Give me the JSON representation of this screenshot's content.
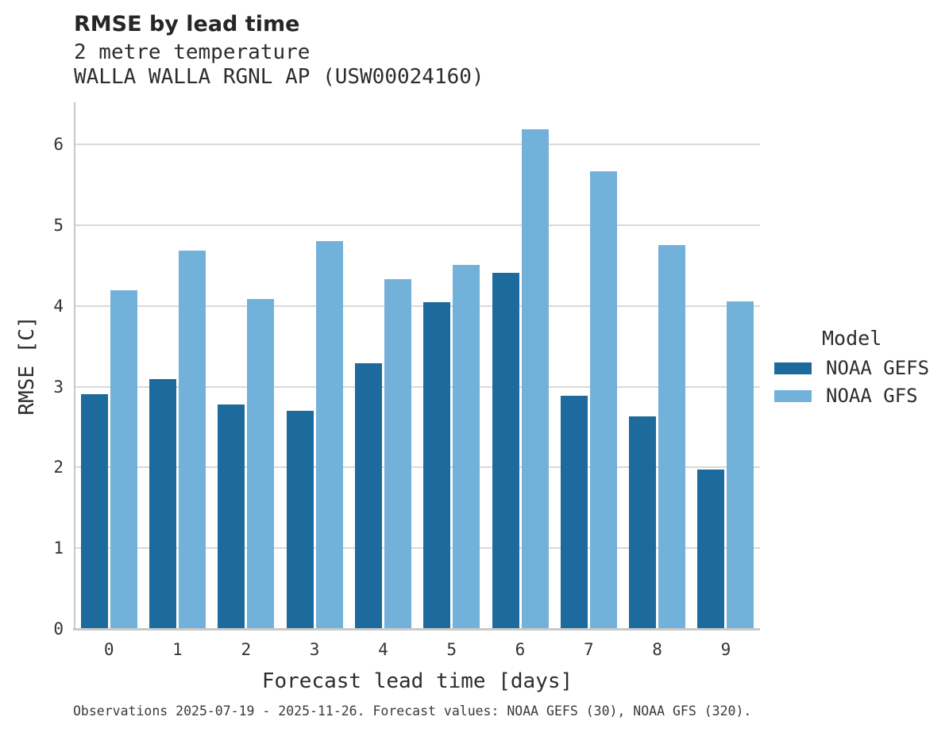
{
  "colors": {
    "gefs_dark_blue": "#1c6b9c",
    "gfs_light_blue": "#72b1d9",
    "grid": "#d9d9d9",
    "axis": "#c9c9c9",
    "text": "#333333"
  },
  "chart_data": {
    "type": "bar",
    "title": "RMSE by lead time",
    "subtitle": [
      "2 metre temperature",
      "WALLA WALLA RGNL AP (USW00024160)"
    ],
    "categories": [
      "0",
      "1",
      "2",
      "3",
      "4",
      "5",
      "6",
      "7",
      "8",
      "9"
    ],
    "series": [
      {
        "name": "NOAA GEFS",
        "color": "#1c6b9c",
        "values": [
          2.91,
          3.09,
          2.78,
          2.7,
          3.29,
          4.05,
          4.41,
          2.89,
          2.63,
          1.97
        ]
      },
      {
        "name": "NOAA GFS",
        "color": "#72b1d9",
        "values": [
          4.19,
          4.69,
          4.09,
          4.8,
          4.33,
          4.51,
          6.19,
          5.67,
          4.75,
          4.06
        ]
      }
    ],
    "xlabel": "Forecast lead time [days]",
    "ylabel": "RMSE [C]",
    "ylim": [
      0,
      6.5
    ],
    "yticks": [
      0,
      1,
      2,
      3,
      4,
      5,
      6
    ],
    "grid": true,
    "legend_title": "Model",
    "legend_position": "right",
    "caption": "Observations 2025-07-19 - 2025-11-26. Forecast values: NOAA GEFS (30), NOAA GFS (320)."
  }
}
